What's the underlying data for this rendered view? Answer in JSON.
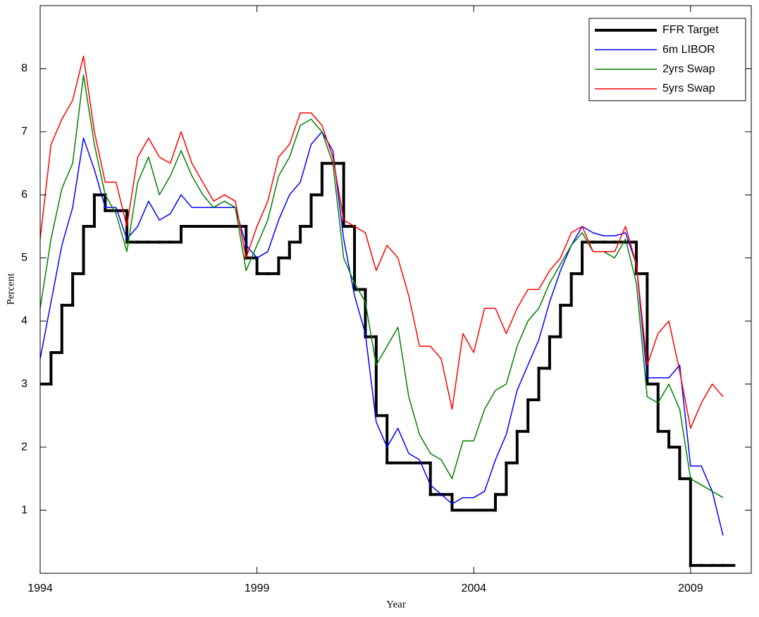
{
  "chart_data": {
    "type": "line",
    "xlabel": "Year",
    "ylabel": "Percent",
    "x": [
      1994.0,
      1994.25,
      1994.5,
      1994.75,
      1995.0,
      1995.25,
      1995.5,
      1995.75,
      1996.0,
      1996.25,
      1996.5,
      1996.75,
      1997.0,
      1997.25,
      1997.5,
      1997.75,
      1998.0,
      1998.25,
      1998.5,
      1998.75,
      1999.0,
      1999.25,
      1999.5,
      1999.75,
      2000.0,
      2000.25,
      2000.5,
      2000.75,
      2001.0,
      2001.25,
      2001.5,
      2001.75,
      2002.0,
      2002.25,
      2002.5,
      2002.75,
      2003.0,
      2003.25,
      2003.5,
      2003.75,
      2004.0,
      2004.25,
      2004.5,
      2004.75,
      2005.0,
      2005.25,
      2005.5,
      2005.75,
      2006.0,
      2006.25,
      2006.5,
      2006.75,
      2007.0,
      2007.25,
      2007.5,
      2007.75,
      2008.0,
      2008.25,
      2008.5,
      2008.75,
      2009.0,
      2009.25,
      2009.5,
      2009.75
    ],
    "series": [
      {
        "name": "FFR Target",
        "color": "#000000",
        "linewidth": 4,
        "drawstyle": "steps-post",
        "values": [
          3.0,
          3.5,
          4.25,
          4.75,
          5.5,
          6.0,
          5.75,
          5.75,
          5.25,
          5.25,
          5.25,
          5.25,
          5.25,
          5.5,
          5.5,
          5.5,
          5.5,
          5.5,
          5.5,
          5.0,
          4.75,
          4.75,
          5.0,
          5.25,
          5.5,
          6.0,
          6.5,
          6.5,
          5.5,
          4.5,
          3.75,
          2.5,
          1.75,
          1.75,
          1.75,
          1.75,
          1.25,
          1.25,
          1.0,
          1.0,
          1.0,
          1.0,
          1.25,
          1.75,
          2.25,
          2.75,
          3.25,
          3.75,
          4.25,
          4.75,
          5.25,
          5.25,
          5.25,
          5.25,
          5.25,
          4.75,
          3.0,
          2.25,
          2.0,
          1.5,
          0.125,
          0.125,
          0.125,
          0.125
        ]
      },
      {
        "name": "6m LIBOR",
        "color": "#0000ff",
        "linewidth": 1.5,
        "drawstyle": "default",
        "values": [
          3.4,
          4.3,
          5.2,
          5.8,
          6.9,
          6.4,
          5.8,
          5.8,
          5.3,
          5.5,
          5.9,
          5.6,
          5.7,
          6.0,
          5.8,
          5.8,
          5.8,
          5.8,
          5.8,
          5.2,
          5.0,
          5.1,
          5.6,
          6.0,
          6.2,
          6.8,
          7.0,
          6.7,
          5.3,
          4.4,
          3.8,
          2.4,
          2.0,
          2.3,
          1.9,
          1.8,
          1.4,
          1.25,
          1.1,
          1.2,
          1.2,
          1.3,
          1.8,
          2.2,
          2.9,
          3.3,
          3.7,
          4.3,
          4.8,
          5.2,
          5.5,
          5.4,
          5.35,
          5.35,
          5.4,
          4.9,
          3.1,
          3.1,
          3.1,
          3.3,
          1.7,
          1.7,
          1.3,
          0.6
        ]
      },
      {
        "name": "2yrs Swap",
        "color": "#008000",
        "linewidth": 1.5,
        "drawstyle": "default",
        "values": [
          4.2,
          5.3,
          6.1,
          6.5,
          7.9,
          6.8,
          6.0,
          5.7,
          5.1,
          6.2,
          6.6,
          6.0,
          6.3,
          6.7,
          6.3,
          6.0,
          5.8,
          5.9,
          5.8,
          4.8,
          5.2,
          5.6,
          6.3,
          6.6,
          7.1,
          7.2,
          7.0,
          6.5,
          5.0,
          4.6,
          4.3,
          3.3,
          3.6,
          3.9,
          2.8,
          2.2,
          1.9,
          1.8,
          1.5,
          2.1,
          2.1,
          2.6,
          2.9,
          3.0,
          3.6,
          4.0,
          4.2,
          4.6,
          4.9,
          5.2,
          5.4,
          5.1,
          5.1,
          5.0,
          5.3,
          4.6,
          2.8,
          2.7,
          3.0,
          2.6,
          1.5,
          1.4,
          1.3,
          1.2
        ]
      },
      {
        "name": "5yrs Swap",
        "color": "#ff0000",
        "linewidth": 1.5,
        "drawstyle": "default",
        "values": [
          5.3,
          6.8,
          7.2,
          7.5,
          8.2,
          7.0,
          6.2,
          6.2,
          5.5,
          6.6,
          6.9,
          6.6,
          6.5,
          7.0,
          6.5,
          6.2,
          5.9,
          6.0,
          5.9,
          5.0,
          5.5,
          5.9,
          6.6,
          6.8,
          7.3,
          7.3,
          7.1,
          6.6,
          5.6,
          5.5,
          5.4,
          4.8,
          5.2,
          5.0,
          4.4,
          3.6,
          3.6,
          3.4,
          2.6,
          3.8,
          3.5,
          4.2,
          4.2,
          3.8,
          4.2,
          4.5,
          4.5,
          4.8,
          5.0,
          5.4,
          5.5,
          5.1,
          5.1,
          5.1,
          5.5,
          4.9,
          3.3,
          3.8,
          4.0,
          3.2,
          2.3,
          2.7,
          3.0,
          2.8
        ]
      }
    ],
    "xlim": [
      1994,
      2010.4
    ],
    "xticks": [
      1994,
      1999,
      2004,
      2009
    ],
    "ylim": [
      0,
      9
    ],
    "yticks": [
      1,
      2,
      3,
      4,
      5,
      6,
      7,
      8
    ],
    "legend": "upper right"
  }
}
